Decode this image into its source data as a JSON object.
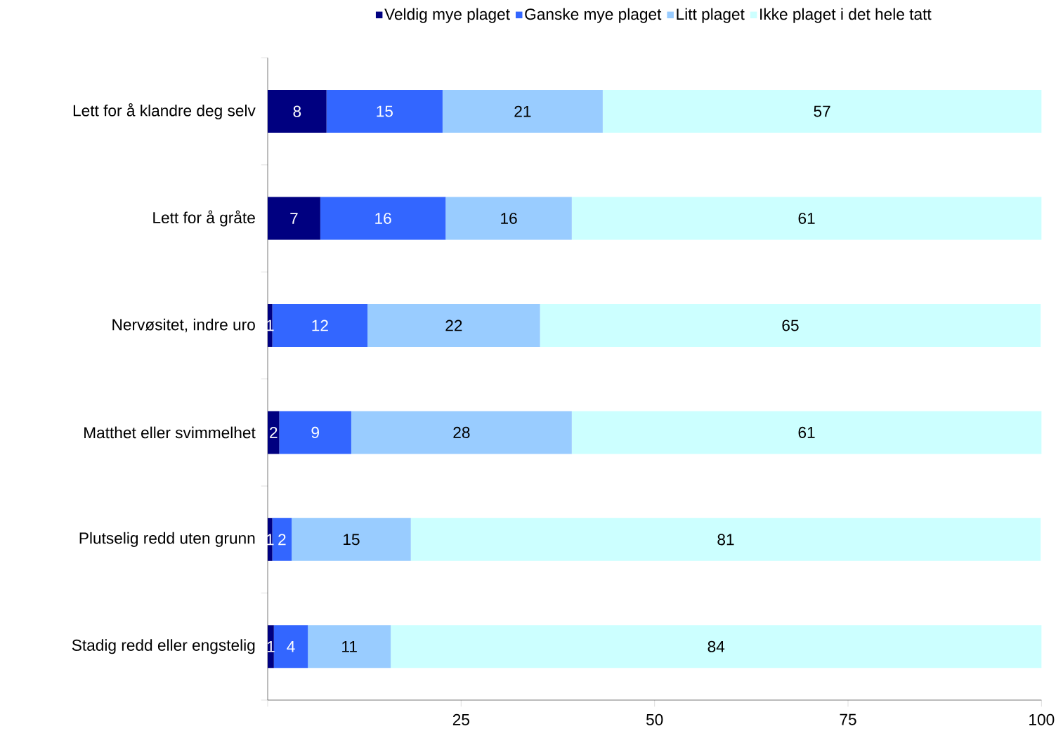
{
  "chart_data": {
    "type": "bar",
    "orientation": "horizontal",
    "stacked": true,
    "legend": "top",
    "grid": false,
    "categories": [
      "Lett for å klandre deg selv",
      "Lett for å gråte",
      "Nervøsitet, indre uro",
      "Matthet eller svimmelhet",
      "Plutselig redd uten grunn",
      "Stadig redd eller engstelig"
    ],
    "xlim": [
      0,
      100
    ],
    "xticks": [
      {
        "value": 0,
        "label": null
      },
      25,
      50,
      75,
      100
    ],
    "series": [
      {
        "name": "Veldig mye plaget",
        "color": "#000080",
        "values": [
          7.6,
          6.8,
          0.6,
          1.5,
          0.6,
          0.8
        ],
        "value_labels": [
          "8",
          "7",
          "1",
          "2",
          "1",
          "1"
        ]
      },
      {
        "name": "Ganske mye plaget",
        "color": "#3366ff",
        "values": [
          15.0,
          16.2,
          12.3,
          9.3,
          2.5,
          4.4
        ],
        "value_labels": [
          "15",
          "16",
          "12",
          "9",
          "2",
          "4"
        ]
      },
      {
        "name": "Litt plaget",
        "color": "#99ccff",
        "values": [
          20.7,
          16.3,
          22.3,
          28.5,
          15.4,
          10.7
        ],
        "value_labels": [
          "21",
          "16",
          "22",
          "28",
          "15",
          "11"
        ]
      },
      {
        "name": "Ikke plaget i det hele tatt",
        "color": "#ccffff",
        "values": [
          56.7,
          60.7,
          64.7,
          60.7,
          81.4,
          84.1
        ],
        "value_labels": [
          "57",
          "61",
          "65",
          "61",
          "81",
          "84"
        ]
      }
    ]
  }
}
